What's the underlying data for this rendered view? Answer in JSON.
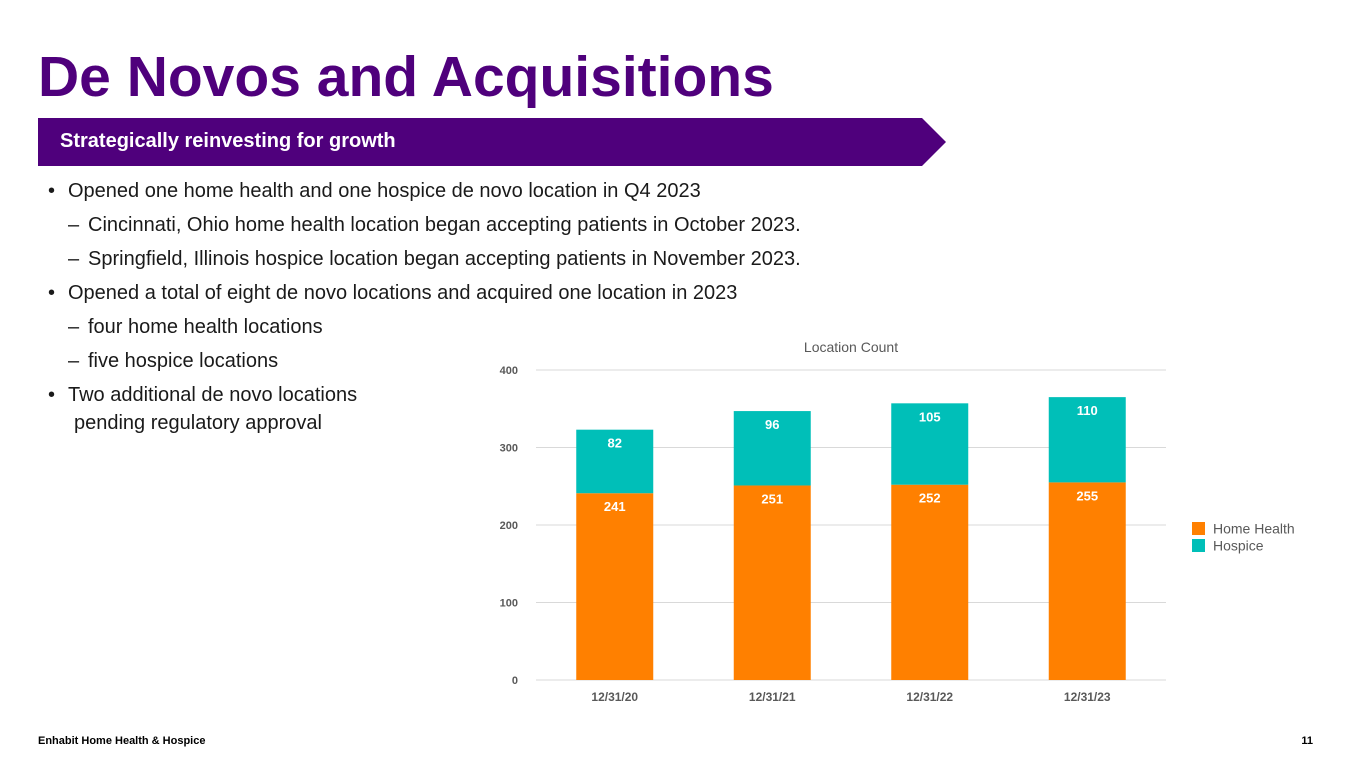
{
  "page": {
    "title": "De Novos and Acquisitions",
    "banner": "Strategically reinvesting for growth",
    "footer_left": "Enhabit Home Health & Hospice",
    "page_number": "11"
  },
  "bullets": [
    {
      "level": 1,
      "marker": "•",
      "text": "Opened one home health and one hospice de novo location in Q4 2023"
    },
    {
      "level": 2,
      "marker": "–",
      "text": "Cincinnati, Ohio home health location began accepting patients in October 2023."
    },
    {
      "level": 2,
      "marker": "–",
      "text": "Springfield, Illinois hospice location began accepting patients in November 2023."
    },
    {
      "level": 1,
      "marker": "•",
      "text": "Opened a total of eight de novo locations and acquired one location in 2023"
    },
    {
      "level": 2,
      "marker": "–",
      "text": "four home health locations"
    },
    {
      "level": 2,
      "marker": "–",
      "text": "five hospice locations"
    },
    {
      "level": 1,
      "marker": "•",
      "text": "Two additional de novo locations"
    },
    {
      "level": 0,
      "marker": "",
      "text": "pending regulatory approval"
    }
  ],
  "colors": {
    "brand_purple": "#4f007c",
    "home_health": "#ff8000",
    "hospice": "#00bfb8"
  },
  "chart_data": {
    "type": "bar",
    "stacked": true,
    "title": "Location Count",
    "categories": [
      "12/31/20",
      "12/31/21",
      "12/31/22",
      "12/31/23"
    ],
    "series": [
      {
        "name": "Home Health",
        "values": [
          241,
          251,
          252,
          255
        ],
        "color": "#ff8000"
      },
      {
        "name": "Hospice",
        "values": [
          82,
          96,
          105,
          110
        ],
        "color": "#00bfb8"
      }
    ],
    "ylim": [
      0,
      400
    ],
    "yticks": [
      0,
      100,
      200,
      300,
      400
    ],
    "grid": true,
    "legend": "right",
    "xlabel": "",
    "ylabel": ""
  }
}
